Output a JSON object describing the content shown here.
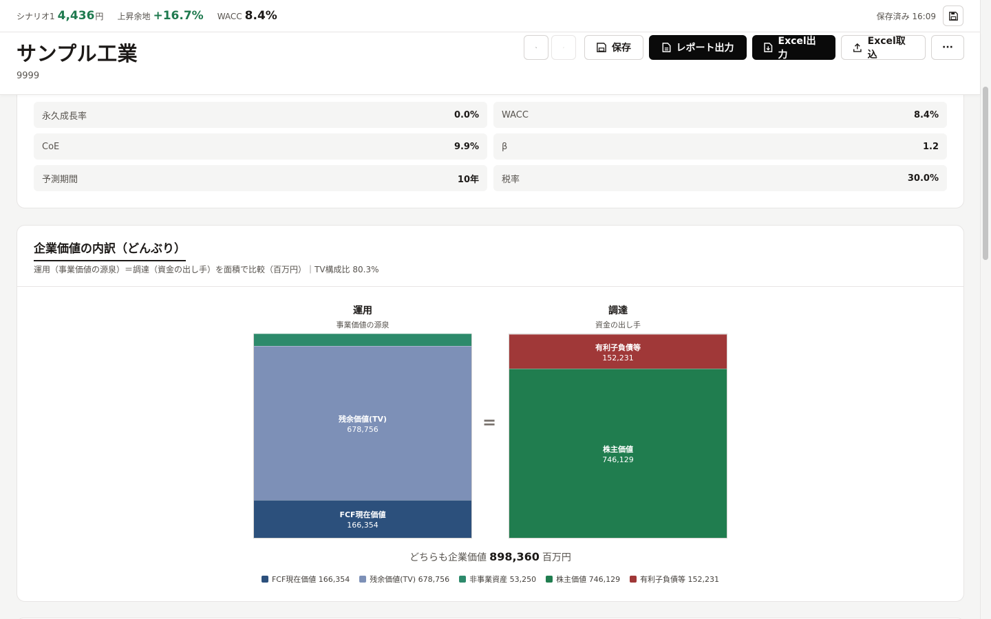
{
  "topbar": {
    "scenario_label": "シナリオ1",
    "scenario_value": "4,436",
    "scenario_unit": "円",
    "upside_label": "上昇余地",
    "upside_value": "+16.7%",
    "wacc_label": "WACC",
    "wacc_value": "8.4%",
    "saved_text": "保存済み 16:09",
    "save_icon": "floppy-disk-icon"
  },
  "header": {
    "company": "サンプル工業",
    "code": "9999",
    "undo_icon": "undo-icon",
    "redo_icon": "redo-icon",
    "save_label": "保存",
    "report_label": "レポート出力",
    "excel_export_label": "Excel出力",
    "excel_import_label": "Excel取込",
    "more_label": "···"
  },
  "params": [
    {
      "label": "永久成長率",
      "value": "0.0%"
    },
    {
      "label": "WACC",
      "value": "8.4%"
    },
    {
      "label": "CoE",
      "value": "9.9%"
    },
    {
      "label": "β",
      "value": "1.2"
    },
    {
      "label": "予測期間",
      "value": "10年"
    },
    {
      "label": "税率",
      "value": "30.0%"
    }
  ],
  "breakdown": {
    "title": "企業価値の内訳（どんぶり）",
    "subtitle": "運用（事業価値の源泉）＝調達（資金の出し手）を面積で比較（百万円）｜TV構成比 80.3%",
    "left_head": "運用",
    "left_sub": "事業価値の源泉",
    "right_head": "調達",
    "right_sub": "資金の出し手",
    "eq": "=",
    "total_prefix": "どちらも企業価値",
    "total_value": "898,360",
    "total_unit": "百万円"
  },
  "chart_data": {
    "type": "bar",
    "stacked": true,
    "unit": "百万円",
    "total": 898360,
    "stacks": [
      {
        "name": "運用",
        "segments": [
          {
            "name": "FCF現在価値",
            "value": 166354,
            "color": "#2c507c"
          },
          {
            "name": "残余価値(TV)",
            "value": 678756,
            "color": "#7d90b7"
          },
          {
            "name": "非事業資産",
            "value": 53250,
            "color": "#2d8a6b"
          }
        ]
      },
      {
        "name": "調達",
        "segments": [
          {
            "name": "株主価値",
            "value": 746129,
            "color": "#207d4f"
          },
          {
            "name": "有利子負債等",
            "value": 152231,
            "color": "#a03838"
          }
        ]
      }
    ],
    "legend": [
      {
        "label": "FCF現在価値 166,354",
        "color": "#2c507c"
      },
      {
        "label": "残余価値(TV) 678,756",
        "color": "#7d90b7"
      },
      {
        "label": "非事業資産 53,250",
        "color": "#2d8a6b"
      },
      {
        "label": "株主価値 746,129",
        "color": "#207d4f"
      },
      {
        "label": "有利子負債等 152,231",
        "color": "#a03838"
      }
    ]
  }
}
